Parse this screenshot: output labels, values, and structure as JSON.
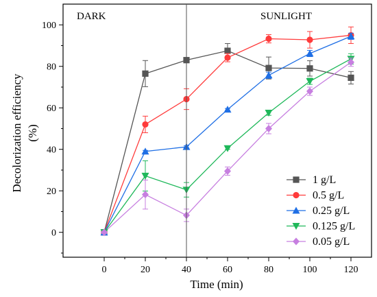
{
  "chart_data": {
    "type": "line",
    "xlabel": "Time (min)",
    "ylabel": "Decolorization efficiency",
    "ylabel_unit": "(%)",
    "xlim": [
      -20,
      130
    ],
    "ylim": [
      -12,
      110
    ],
    "xticks": [
      0,
      20,
      40,
      60,
      80,
      100,
      120
    ],
    "yticks": [
      0,
      20,
      40,
      60,
      80,
      100
    ],
    "region_labels": {
      "dark": "DARK",
      "light": "SUNLIGHT"
    },
    "divider_x": 40,
    "legend_position": "bottom-right",
    "grid": false,
    "x": [
      0,
      20,
      40,
      60,
      80,
      100,
      120
    ],
    "series": [
      {
        "name": "1 g/L",
        "color": "#555555",
        "marker": "square",
        "values": [
          0,
          76.5,
          83,
          87.5,
          79.2,
          79,
          74.5
        ],
        "errors": [
          0.5,
          6.3,
          1,
          3.5,
          5.3,
          3.7,
          3
        ]
      },
      {
        "name": "0.5 g/L",
        "color": "#ff3b3b",
        "marker": "circle",
        "values": [
          0,
          52,
          64.2,
          84.2,
          93.3,
          92.8,
          95
        ],
        "errors": [
          0.5,
          4,
          5,
          2,
          2,
          4,
          4
        ]
      },
      {
        "name": "0.25 g/L",
        "color": "#1f6fe5",
        "marker": "triangle-up",
        "values": [
          0,
          39,
          41.2,
          59.2,
          75.7,
          86.2,
          94.5
        ],
        "errors": [
          0.5,
          0.5,
          0.5,
          0.5,
          1.5,
          1.5,
          1.5
        ]
      },
      {
        "name": "0.125 g/L",
        "color": "#1fb85a",
        "marker": "triangle-down",
        "values": [
          0,
          27.2,
          20.5,
          40.5,
          57.6,
          72.8,
          83.6
        ],
        "errors": [
          0.5,
          7.3,
          3.5,
          0.5,
          1.2,
          1.5,
          2.5
        ]
      },
      {
        "name": "0.05 g/L",
        "color": "#c77fe0",
        "marker": "diamond",
        "values": [
          0,
          18.2,
          8.2,
          29.5,
          50,
          68,
          82
        ],
        "errors": [
          0.5,
          7,
          3,
          2,
          2.5,
          2,
          2
        ]
      }
    ]
  }
}
